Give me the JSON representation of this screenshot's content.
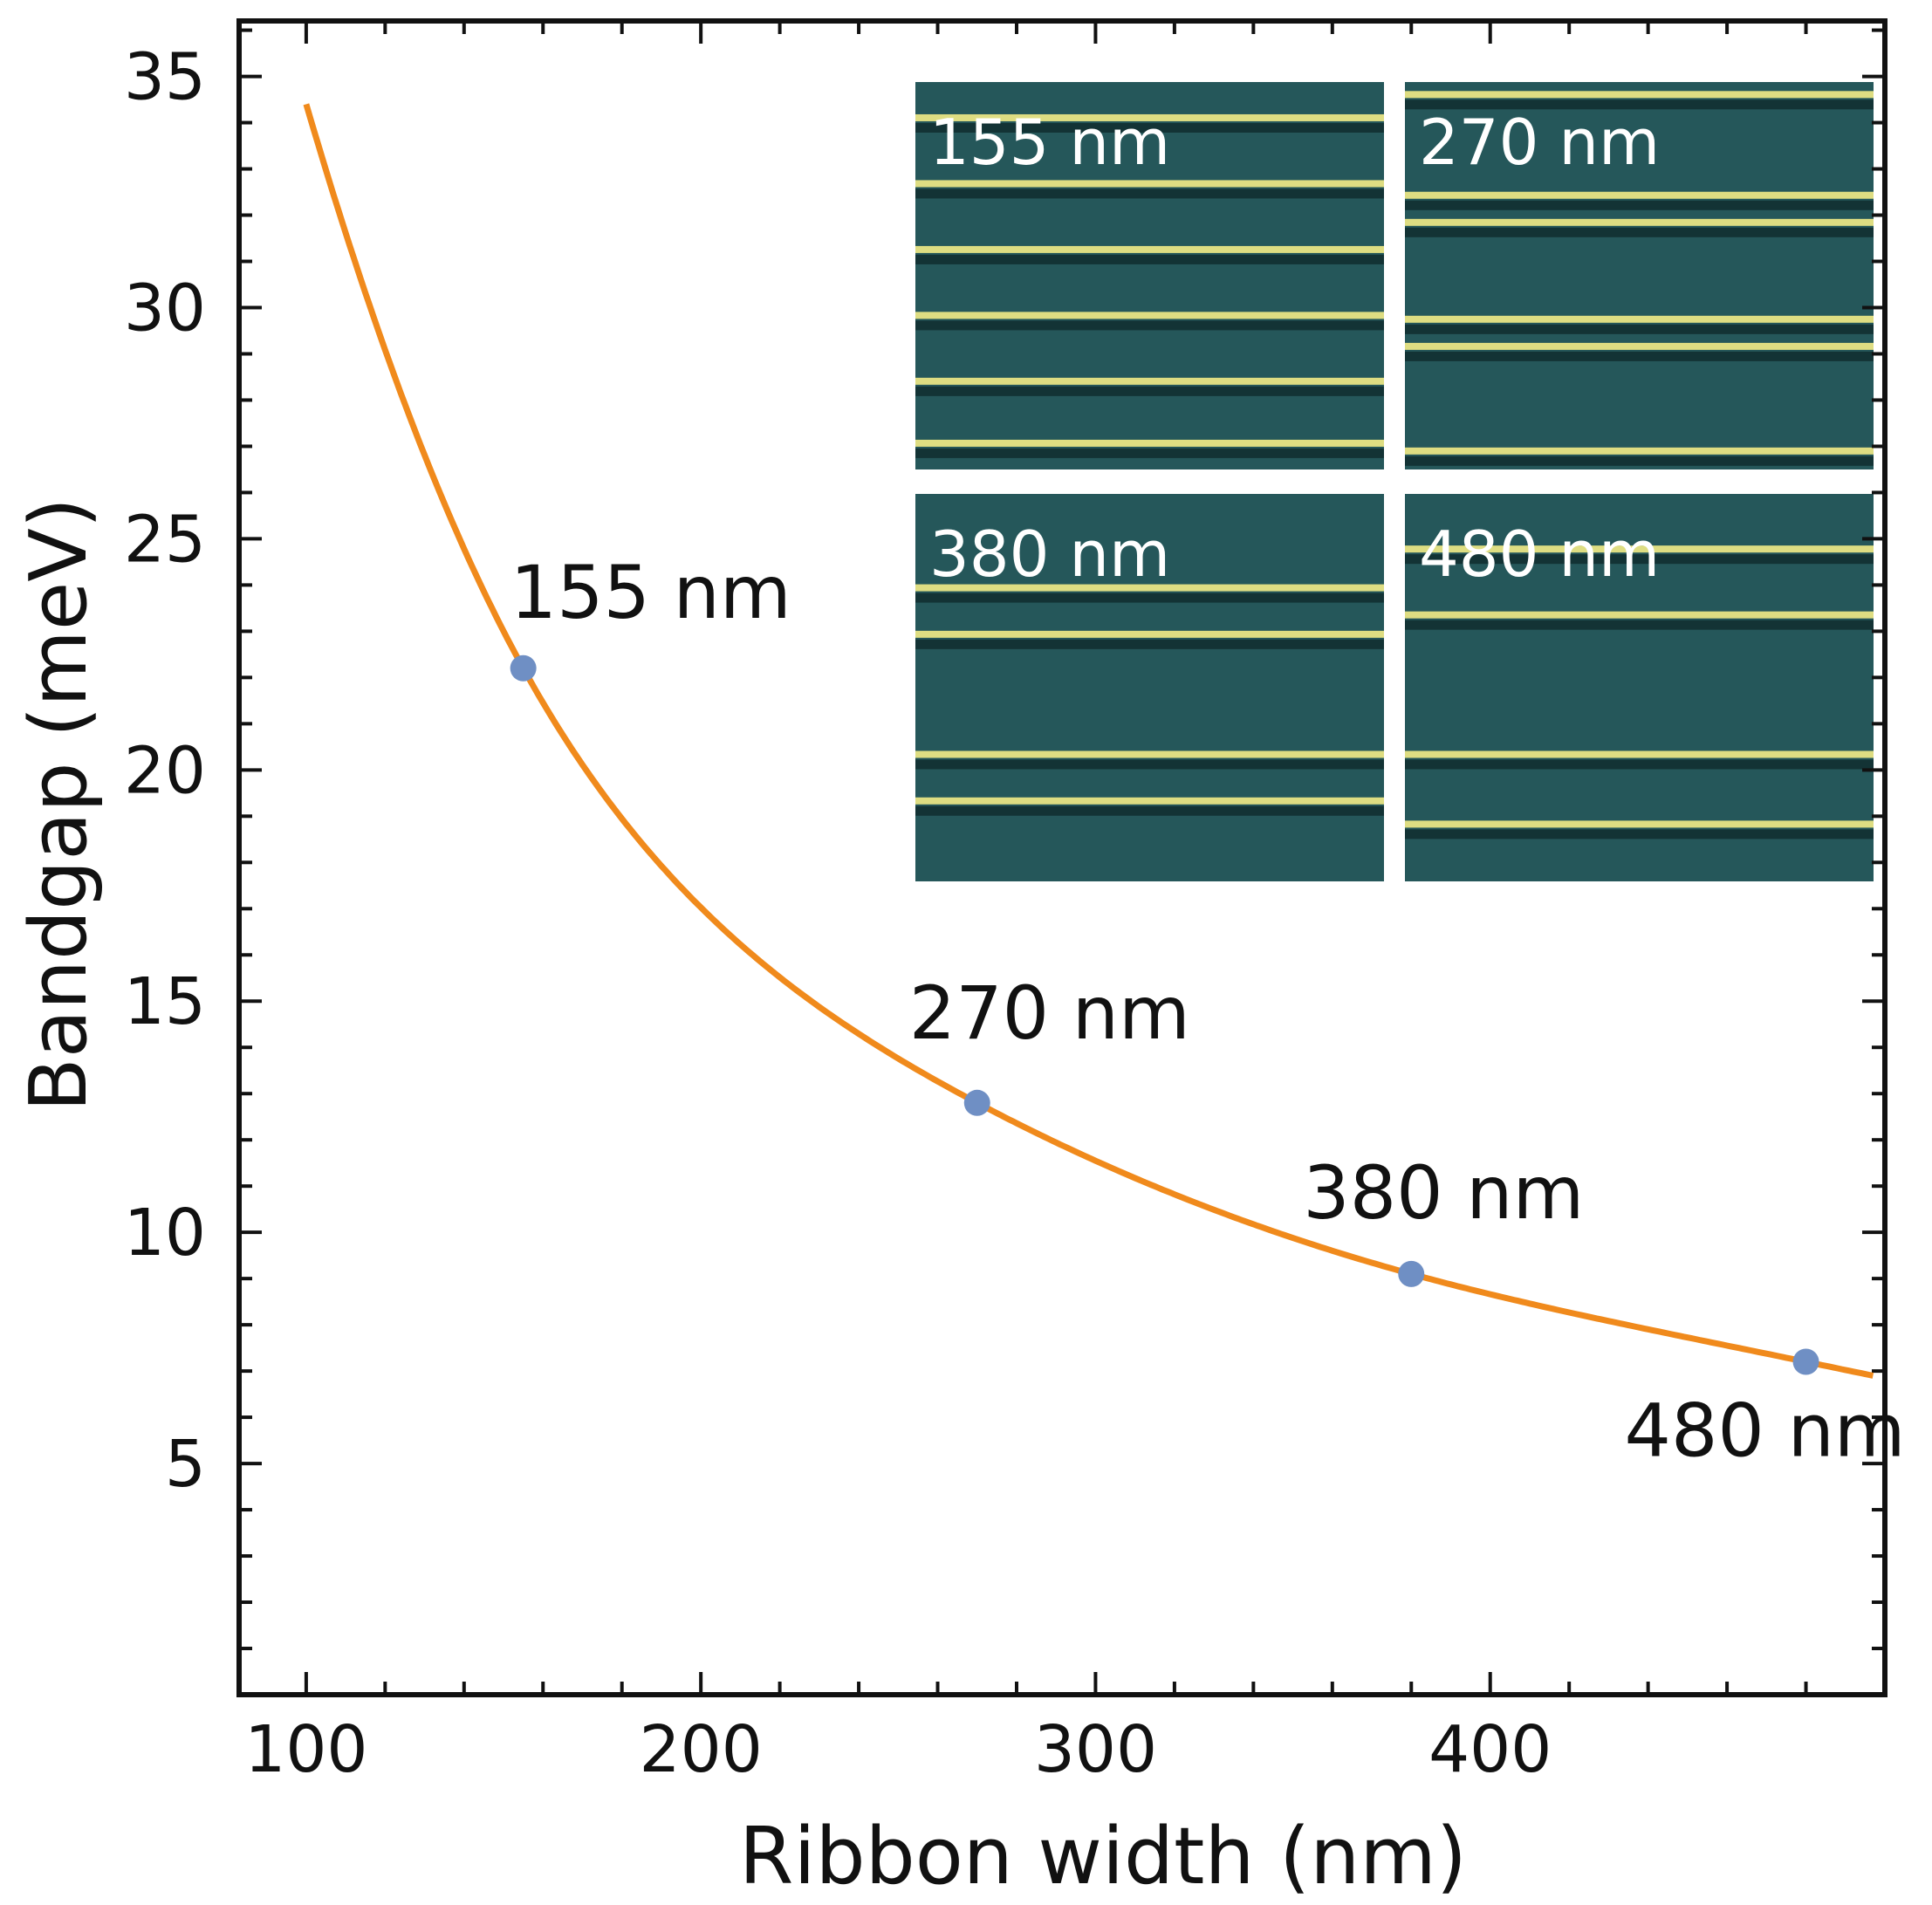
{
  "chart_data": {
    "type": "line",
    "xlabel": "Ribbon width (nm)",
    "ylabel": "Bandgap (meV)",
    "xlim": [
      83,
      500
    ],
    "ylim": [
      0,
      36.2
    ],
    "xticks": [
      100,
      200,
      300,
      400
    ],
    "yticks": [
      5,
      10,
      15,
      20,
      25,
      30,
      35
    ],
    "grid": false,
    "colors": {
      "curve": "#f08a1c",
      "points": "#6f8fc4",
      "frame": "#111111",
      "inset_bg": "#25575a",
      "stripe": "#f3ec86"
    },
    "curve": {
      "name": "",
      "x_range": [
        100,
        497
      ],
      "values_at": {
        "x": [
          100,
          155,
          270,
          380,
          480,
          497
        ],
        "y": [
          34.4,
          22.2,
          12.8,
          9.1,
          7.2,
          6.9
        ]
      }
    },
    "series": [
      {
        "name": "",
        "x": [
          155,
          270,
          380,
          480
        ],
        "y": [
          22.2,
          12.8,
          9.1,
          7.2
        ],
        "labels": [
          "155 nm",
          "270 nm",
          "380 nm",
          "480 nm"
        ]
      }
    ],
    "inset": {
      "type": "image-grid",
      "panels": [
        {
          "label": "155 nm",
          "stripes": [
            0.09,
            0.26,
            0.43,
            0.6,
            0.77,
            0.93
          ]
        },
        {
          "label": "270 nm",
          "stripes": [
            0.03,
            0.29,
            0.36,
            0.61,
            0.68,
            0.95
          ]
        },
        {
          "label": "380 nm",
          "stripes": [
            0.24,
            0.36,
            0.67,
            0.79
          ]
        },
        {
          "label": "480 nm",
          "stripes": [
            0.14,
            0.31,
            0.67,
            0.85
          ]
        }
      ]
    }
  }
}
